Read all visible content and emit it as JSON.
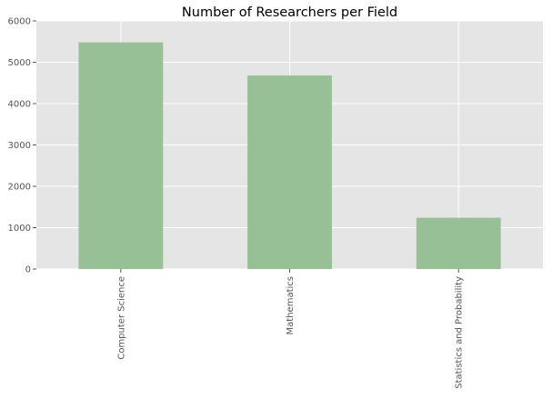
{
  "chart_data": {
    "type": "bar",
    "title": "Number of Researchers per Field",
    "xlabel": "",
    "ylabel": "",
    "categories": [
      "Computer Science",
      "Mathematics",
      "Statistics and Probability"
    ],
    "values": [
      5480,
      4680,
      1240
    ],
    "ylim": [
      0,
      6000
    ],
    "yticks": [
      0,
      1000,
      2000,
      3000,
      4000,
      5000,
      6000
    ],
    "grid": true,
    "legend": "none",
    "colors": {
      "bar": "#97c097",
      "plot_background": "#e5e5e5",
      "grid": "#ffffff",
      "tick_text": "#555555",
      "title": "#000000"
    }
  }
}
